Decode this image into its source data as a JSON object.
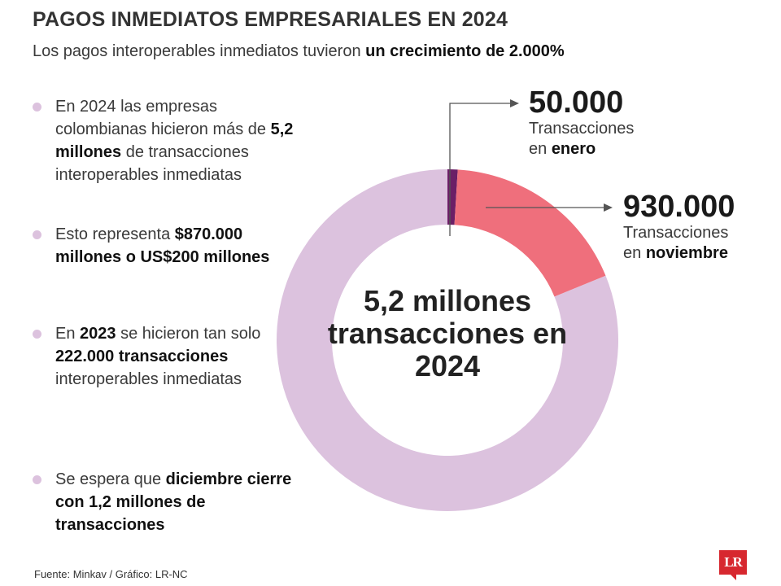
{
  "header": {
    "title": "PAGOS INMEDIATOS EMPRESARIALES EN 2024",
    "subtitle_plain": "Los pagos interoperables inmediatos tuvieron ",
    "subtitle_bold": "un crecimiento de 2.000%"
  },
  "bullets": [
    {
      "parts": [
        {
          "t": "En 2024 las empresas colombianas hicieron más de "
        },
        {
          "t": "5,2 millones",
          "b": true
        },
        {
          "t": " de transacciones interoperables inmediatas"
        }
      ]
    },
    {
      "parts": [
        {
          "t": "Esto representa "
        },
        {
          "t": "$870.000 millones o US$200 millones",
          "b": true
        }
      ]
    },
    {
      "parts": [
        {
          "t": "En "
        },
        {
          "t": "2023",
          "b": true
        },
        {
          "t": " se hicieron tan solo "
        },
        {
          "t": "222.000 transacciones",
          "b": true
        },
        {
          "t": " interoperables inmediatas"
        }
      ]
    },
    {
      "parts": [
        {
          "t": "Se espera que "
        },
        {
          "t": "diciembre cierre con 1,2 millones de transacciones",
          "b": true
        }
      ]
    }
  ],
  "chart_data": {
    "type": "pie",
    "total": 5200000,
    "center_label": "5,2 millones transacciones en 2024",
    "slices": [
      {
        "label": "enero",
        "value": 50000,
        "color": "#6b1f66"
      },
      {
        "label": "noviembre",
        "value": 930000,
        "color": "#ef6f7c"
      },
      {
        "label": "",
        "value": 4220000,
        "color": "#dcc2de"
      }
    ]
  },
  "callouts": {
    "enero": {
      "value": "50.000",
      "line1": "Transacciones",
      "line2_plain": "en ",
      "line2_bold": "enero"
    },
    "noviembre": {
      "value": "930.000",
      "line1": "Transacciones",
      "line2_plain": "en ",
      "line2_bold": "noviembre"
    }
  },
  "footer": {
    "source": "Fuente: Minkav / Gráfico: LR-NC",
    "logo": "LR"
  },
  "colors": {
    "bullet_dot": "#dcc2de",
    "leader_line": "#555555"
  }
}
